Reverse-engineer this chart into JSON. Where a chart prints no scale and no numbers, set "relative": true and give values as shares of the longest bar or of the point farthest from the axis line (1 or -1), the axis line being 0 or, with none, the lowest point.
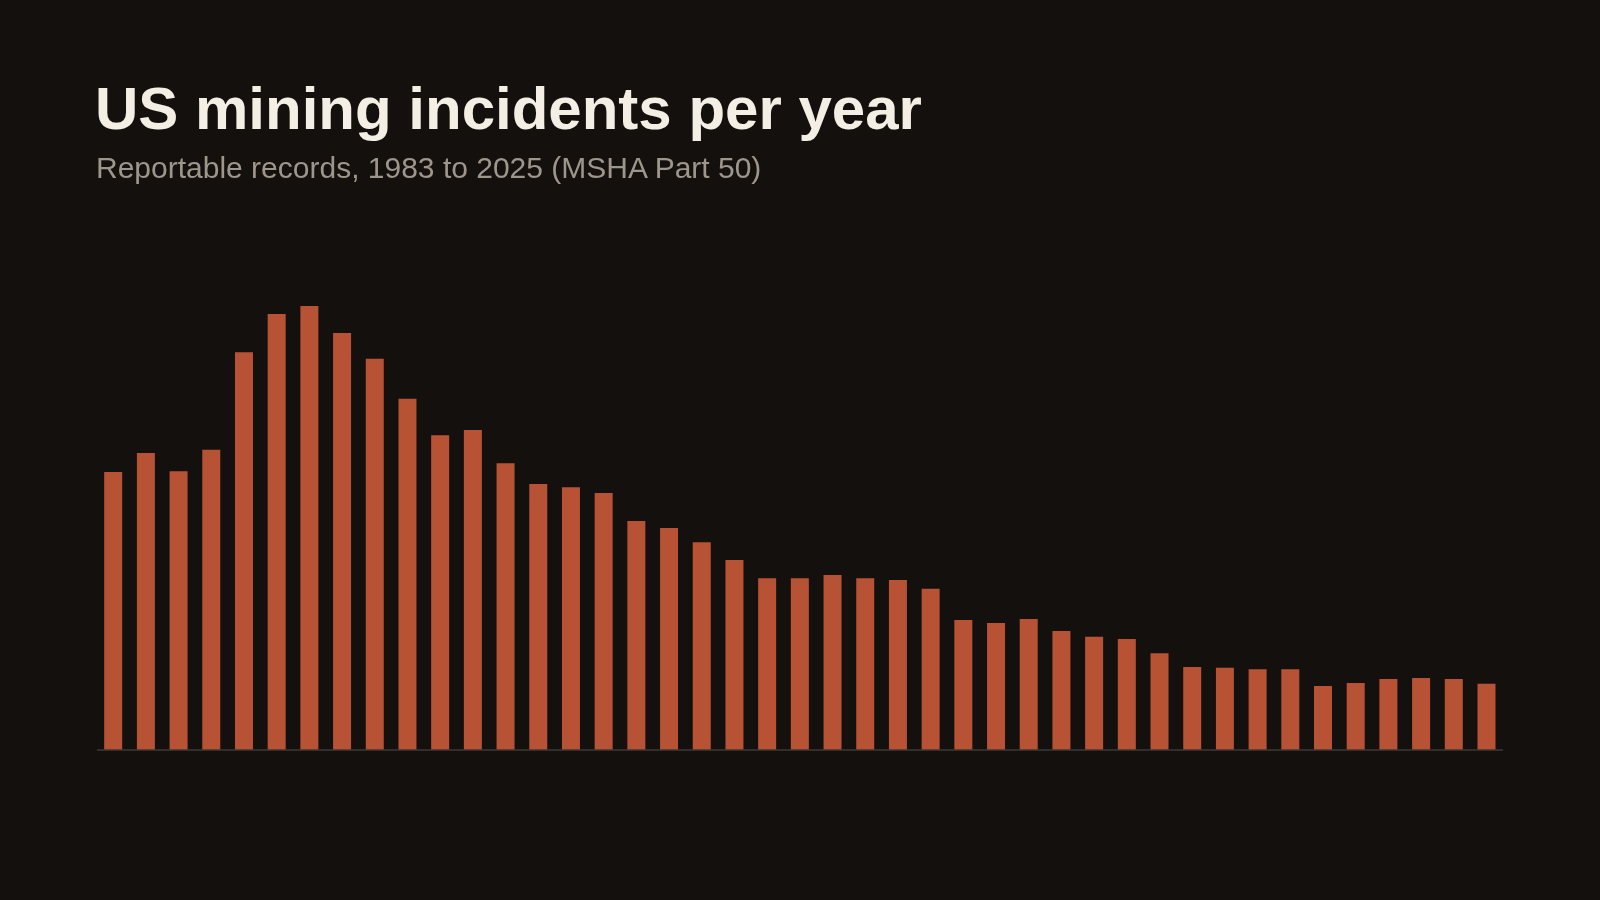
{
  "chart_data": {
    "type": "bar",
    "title": "US mining incidents per year",
    "subtitle": "Reportable records, 1983 to 2025 (MSHA Part 50)",
    "categories": [
      null,
      null,
      null,
      null,
      null,
      null,
      null,
      null,
      null,
      null,
      null,
      null,
      null,
      null,
      null,
      null,
      null,
      null,
      null,
      null,
      null,
      null,
      null,
      null,
      null,
      null,
      null,
      null,
      null,
      null,
      null,
      null,
      null,
      null,
      null,
      null,
      null,
      null,
      null,
      null,
      null,
      null,
      null
    ],
    "values": [
      0.626,
      0.669,
      0.628,
      0.676,
      0.896,
      0.982,
      1,
      0.939,
      0.881,
      0.791,
      0.709,
      0.721,
      0.646,
      0.599,
      0.592,
      0.579,
      0.516,
      0.5,
      0.468,
      0.428,
      0.387,
      0.387,
      0.394,
      0.387,
      0.383,
      0.363,
      0.293,
      0.286,
      0.295,
      0.268,
      0.255,
      0.25,
      0.218,
      0.187,
      0.185,
      0.182,
      0.182,
      0.144,
      0.151,
      0.16,
      0.162,
      0.16,
      0.149
    ],
    "color": "#b85234",
    "relative": true
  }
}
